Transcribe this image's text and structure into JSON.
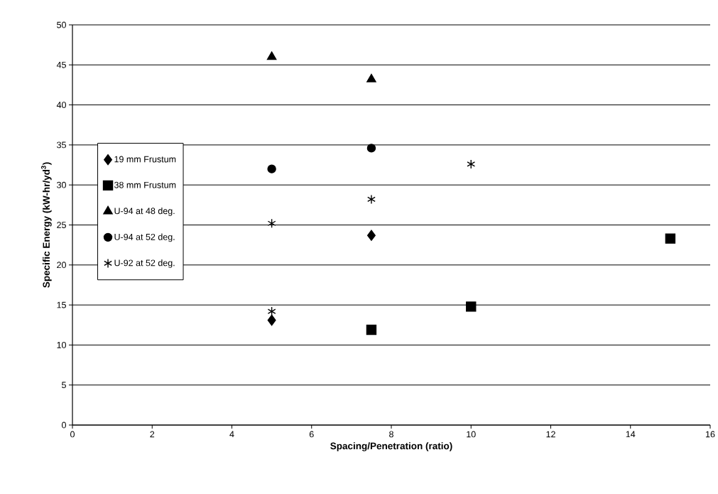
{
  "chart_data": {
    "type": "scatter",
    "xlabel": "Spacing/Penetration (ratio)",
    "ylabel": "Specific Energy (kW-hr/yd$^{3}$)",
    "xlim": [
      0,
      16
    ],
    "xticks": [
      0,
      2,
      4,
      6,
      8,
      10,
      12,
      14,
      16
    ],
    "ylim": [
      0,
      50
    ],
    "yticks": [
      0,
      5,
      10,
      15,
      20,
      25,
      30,
      35,
      40,
      45,
      50
    ],
    "grid": "y",
    "legend": "left",
    "series": [
      {
        "name": "19 mm Frustum",
        "color": "#000000",
        "marker": "diamond",
        "x": [
          5,
          7.5
        ],
        "values": [
          13.1,
          23.7
        ]
      },
      {
        "name": "38 mm Frustum",
        "color": "#000000",
        "marker": "square",
        "x": [
          7.5,
          10,
          15
        ],
        "values": [
          11.9,
          14.8,
          23.3
        ]
      },
      {
        "name": "U-94 at 48 deg.",
        "color": "#000000",
        "marker": "triangle",
        "x": [
          5,
          7.5
        ],
        "values": [
          46.0,
          43.2
        ]
      },
      {
        "name": "U-94 at 52 deg.",
        "color": "#000000",
        "marker": "circle",
        "x": [
          5,
          7.5
        ],
        "values": [
          32.0,
          34.6
        ]
      },
      {
        "name": "U-92 at 52 deg.",
        "color": "#000000",
        "marker": "cross",
        "x": [
          5,
          5,
          7.5,
          10
        ],
        "values": [
          25.2,
          14.2,
          28.2,
          32.6
        ]
      }
    ]
  }
}
